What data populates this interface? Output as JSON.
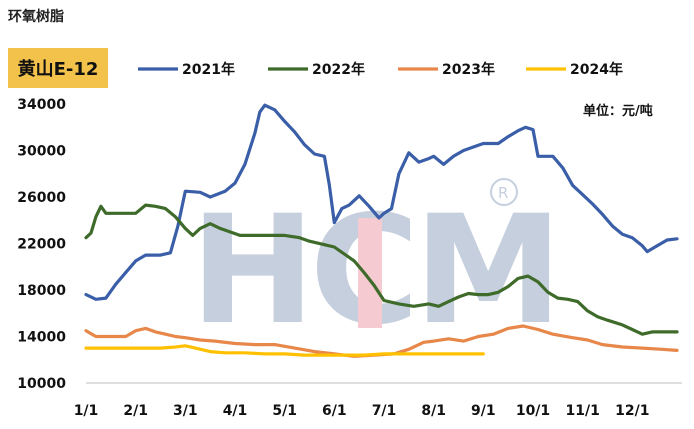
{
  "page_title": "环氧树脂",
  "product_label": "黄山E-12",
  "chart_data": {
    "type": "line",
    "unit_label": "单位：元/吨",
    "ylim": [
      10000,
      34000
    ],
    "yticks": [
      10000,
      14000,
      18000,
      22000,
      26000,
      30000,
      34000
    ],
    "xlim": [
      1,
      13
    ],
    "xticks": [
      {
        "label": "1/1",
        "x": 1
      },
      {
        "label": "2/1",
        "x": 2
      },
      {
        "label": "3/1",
        "x": 3
      },
      {
        "label": "4/1",
        "x": 4
      },
      {
        "label": "5/1",
        "x": 5
      },
      {
        "label": "6/1",
        "x": 6
      },
      {
        "label": "7/1",
        "x": 7
      },
      {
        "label": "8/1",
        "x": 8
      },
      {
        "label": "9/1",
        "x": 9
      },
      {
        "label": "10/1",
        "x": 10
      },
      {
        "label": "11/1",
        "x": 11
      },
      {
        "label": "12/1",
        "x": 12
      }
    ],
    "legend_position": "top",
    "series": [
      {
        "name": "2021年",
        "color": "#3a5fa8",
        "points": [
          [
            1.0,
            17600
          ],
          [
            1.2,
            17200
          ],
          [
            1.4,
            17300
          ],
          [
            1.6,
            18500
          ],
          [
            1.8,
            19500
          ],
          [
            2.0,
            20500
          ],
          [
            2.2,
            21000
          ],
          [
            2.5,
            21000
          ],
          [
            2.7,
            21200
          ],
          [
            2.85,
            23500
          ],
          [
            3.0,
            26500
          ],
          [
            3.3,
            26400
          ],
          [
            3.5,
            26000
          ],
          [
            3.8,
            26500
          ],
          [
            4.0,
            27200
          ],
          [
            4.2,
            28800
          ],
          [
            4.4,
            31500
          ],
          [
            4.5,
            33300
          ],
          [
            4.6,
            33900
          ],
          [
            4.8,
            33500
          ],
          [
            5.0,
            32500
          ],
          [
            5.2,
            31600
          ],
          [
            5.4,
            30500
          ],
          [
            5.6,
            29700
          ],
          [
            5.8,
            29500
          ],
          [
            5.9,
            27000
          ],
          [
            6.0,
            23800
          ],
          [
            6.15,
            25000
          ],
          [
            6.3,
            25300
          ],
          [
            6.5,
            26100
          ],
          [
            6.7,
            25200
          ],
          [
            6.9,
            24200
          ],
          [
            7.0,
            24600
          ],
          [
            7.15,
            25000
          ],
          [
            7.3,
            28000
          ],
          [
            7.5,
            29800
          ],
          [
            7.7,
            29000
          ],
          [
            7.9,
            29300
          ],
          [
            8.0,
            29500
          ],
          [
            8.2,
            28800
          ],
          [
            8.4,
            29500
          ],
          [
            8.6,
            30000
          ],
          [
            8.8,
            30300
          ],
          [
            9.0,
            30600
          ],
          [
            9.3,
            30600
          ],
          [
            9.5,
            31200
          ],
          [
            9.7,
            31700
          ],
          [
            9.85,
            32000
          ],
          [
            10.0,
            31800
          ],
          [
            10.1,
            29500
          ],
          [
            10.4,
            29500
          ],
          [
            10.6,
            28500
          ],
          [
            10.8,
            27000
          ],
          [
            11.0,
            26200
          ],
          [
            11.2,
            25400
          ],
          [
            11.4,
            24500
          ],
          [
            11.6,
            23500
          ],
          [
            11.8,
            22800
          ],
          [
            12.0,
            22500
          ],
          [
            12.2,
            21800
          ],
          [
            12.3,
            21300
          ],
          [
            12.5,
            21800
          ],
          [
            12.7,
            22300
          ],
          [
            12.9,
            22400
          ]
        ]
      },
      {
        "name": "2022年",
        "color": "#3e6b2a",
        "points": [
          [
            1.0,
            22500
          ],
          [
            1.1,
            22900
          ],
          [
            1.2,
            24300
          ],
          [
            1.3,
            25200
          ],
          [
            1.4,
            24600
          ],
          [
            1.6,
            24600
          ],
          [
            1.8,
            24600
          ],
          [
            2.0,
            24600
          ],
          [
            2.2,
            25300
          ],
          [
            2.4,
            25200
          ],
          [
            2.6,
            25000
          ],
          [
            2.8,
            24300
          ],
          [
            3.0,
            23300
          ],
          [
            3.15,
            22700
          ],
          [
            3.3,
            23300
          ],
          [
            3.5,
            23700
          ],
          [
            3.7,
            23300
          ],
          [
            3.9,
            23000
          ],
          [
            4.1,
            22700
          ],
          [
            4.4,
            22700
          ],
          [
            4.7,
            22700
          ],
          [
            5.0,
            22700
          ],
          [
            5.3,
            22500
          ],
          [
            5.5,
            22200
          ],
          [
            5.8,
            21900
          ],
          [
            6.0,
            21700
          ],
          [
            6.2,
            21100
          ],
          [
            6.4,
            20500
          ],
          [
            6.6,
            19500
          ],
          [
            6.8,
            18400
          ],
          [
            7.0,
            17100
          ],
          [
            7.3,
            16800
          ],
          [
            7.6,
            16600
          ],
          [
            7.9,
            16800
          ],
          [
            8.1,
            16600
          ],
          [
            8.3,
            17000
          ],
          [
            8.5,
            17400
          ],
          [
            8.7,
            17700
          ],
          [
            8.9,
            17600
          ],
          [
            9.1,
            17600
          ],
          [
            9.3,
            17800
          ],
          [
            9.5,
            18300
          ],
          [
            9.7,
            19000
          ],
          [
            9.9,
            19200
          ],
          [
            10.1,
            18700
          ],
          [
            10.3,
            17800
          ],
          [
            10.5,
            17300
          ],
          [
            10.7,
            17200
          ],
          [
            10.9,
            17000
          ],
          [
            11.1,
            16200
          ],
          [
            11.3,
            15700
          ],
          [
            11.5,
            15400
          ],
          [
            11.8,
            15000
          ],
          [
            12.0,
            14600
          ],
          [
            12.2,
            14200
          ],
          [
            12.4,
            14400
          ],
          [
            12.6,
            14400
          ],
          [
            12.9,
            14400
          ]
        ]
      },
      {
        "name": "2023年",
        "color": "#e7874a",
        "points": [
          [
            1.0,
            14500
          ],
          [
            1.2,
            14000
          ],
          [
            1.5,
            14000
          ],
          [
            1.8,
            14000
          ],
          [
            2.0,
            14500
          ],
          [
            2.2,
            14700
          ],
          [
            2.4,
            14400
          ],
          [
            2.6,
            14200
          ],
          [
            2.8,
            14000
          ],
          [
            3.0,
            13900
          ],
          [
            3.3,
            13700
          ],
          [
            3.6,
            13600
          ],
          [
            4.0,
            13400
          ],
          [
            4.4,
            13300
          ],
          [
            4.8,
            13300
          ],
          [
            5.2,
            13000
          ],
          [
            5.6,
            12700
          ],
          [
            6.0,
            12500
          ],
          [
            6.4,
            12300
          ],
          [
            6.8,
            12400
          ],
          [
            7.2,
            12500
          ],
          [
            7.5,
            12900
          ],
          [
            7.8,
            13500
          ],
          [
            8.0,
            13600
          ],
          [
            8.3,
            13800
          ],
          [
            8.6,
            13600
          ],
          [
            8.9,
            14000
          ],
          [
            9.2,
            14200
          ],
          [
            9.5,
            14700
          ],
          [
            9.8,
            14900
          ],
          [
            10.1,
            14600
          ],
          [
            10.4,
            14200
          ],
          [
            10.8,
            13900
          ],
          [
            11.1,
            13700
          ],
          [
            11.4,
            13300
          ],
          [
            11.8,
            13100
          ],
          [
            12.2,
            13000
          ],
          [
            12.6,
            12900
          ],
          [
            12.9,
            12800
          ]
        ]
      },
      {
        "name": "2024年",
        "color": "#ffc000",
        "points": [
          [
            1.0,
            13000
          ],
          [
            1.3,
            13000
          ],
          [
            1.6,
            13000
          ],
          [
            1.9,
            13000
          ],
          [
            2.2,
            13000
          ],
          [
            2.5,
            13000
          ],
          [
            2.8,
            13100
          ],
          [
            3.0,
            13200
          ],
          [
            3.2,
            13000
          ],
          [
            3.5,
            12700
          ],
          [
            3.8,
            12600
          ],
          [
            4.2,
            12600
          ],
          [
            4.6,
            12500
          ],
          [
            5.0,
            12500
          ],
          [
            5.4,
            12400
          ],
          [
            5.8,
            12400
          ],
          [
            6.2,
            12400
          ],
          [
            6.6,
            12400
          ],
          [
            7.0,
            12500
          ],
          [
            7.4,
            12500
          ],
          [
            7.8,
            12500
          ],
          [
            8.2,
            12500
          ],
          [
            8.6,
            12500
          ],
          [
            9.0,
            12500
          ]
        ]
      }
    ]
  }
}
